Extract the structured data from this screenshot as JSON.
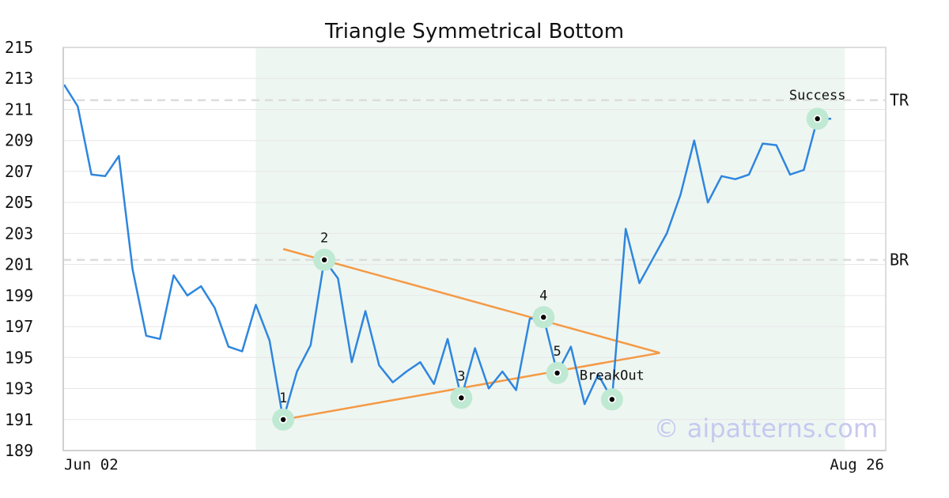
{
  "chart_data": {
    "type": "line",
    "title": "Triangle Symmetrical Bottom",
    "xlabel": "",
    "ylabel": "",
    "ylim": [
      189,
      215
    ],
    "yticks": [
      189,
      191,
      193,
      195,
      197,
      199,
      201,
      203,
      205,
      207,
      209,
      211,
      213,
      215
    ],
    "x_tick_labels": [
      "Jun 02",
      "Aug 26"
    ],
    "grid": true,
    "series": [
      {
        "color": "#2e86de",
        "values": [
          212.6,
          211.2,
          206.8,
          206.7,
          208.0,
          200.7,
          196.4,
          196.2,
          200.3,
          199.0,
          199.6,
          198.2,
          195.7,
          195.4,
          198.4,
          196.1,
          191.0,
          194.1,
          195.8,
          201.3,
          200.1,
          194.7,
          198.0,
          194.5,
          193.4,
          194.1,
          194.7,
          193.3,
          196.2,
          192.4,
          195.6,
          193.0,
          194.1,
          192.9,
          197.5,
          197.6,
          194.0,
          195.7,
          192.0,
          193.9,
          192.3,
          203.3,
          199.8,
          201.4,
          203.0,
          205.5,
          209.0,
          205.0,
          206.7,
          206.5,
          206.8,
          208.8,
          208.7,
          206.8,
          207.1,
          210.4,
          210.4
        ]
      }
    ],
    "shaded_region": {
      "start_index": 14,
      "end_index": 57,
      "color": "#eef6f2"
    },
    "reference_lines": [
      {
        "label": "TR",
        "value": 211.6
      },
      {
        "label": "BR",
        "value": 201.3
      }
    ],
    "pattern_lines": [
      {
        "color": "#f49a45",
        "from": {
          "index": 16,
          "value": 191.0
        },
        "to": {
          "index": 43.5,
          "value": 195.3
        }
      },
      {
        "color": "#f49a45",
        "from": {
          "index": 16,
          "value": 202.0
        },
        "to": {
          "index": 43.5,
          "value": 195.3
        }
      }
    ],
    "points": [
      {
        "label": "1",
        "index": 16,
        "value": 191.0,
        "label_pos": "above"
      },
      {
        "label": "2",
        "index": 19,
        "value": 201.3,
        "label_pos": "above"
      },
      {
        "label": "3",
        "index": 29,
        "value": 192.4,
        "label_pos": "above"
      },
      {
        "label": "4",
        "index": 35,
        "value": 197.6,
        "label_pos": "above"
      },
      {
        "label": "5",
        "index": 36,
        "value": 194.0,
        "label_pos": "above"
      },
      {
        "label": "BreakOut",
        "index": 40,
        "value": 192.3,
        "label_pos": "above"
      },
      {
        "label": "Success",
        "index": 55,
        "value": 210.4,
        "label_pos": "above"
      }
    ],
    "marker_color": "#bfe9d2",
    "watermark": "© aipatterns.com"
  }
}
